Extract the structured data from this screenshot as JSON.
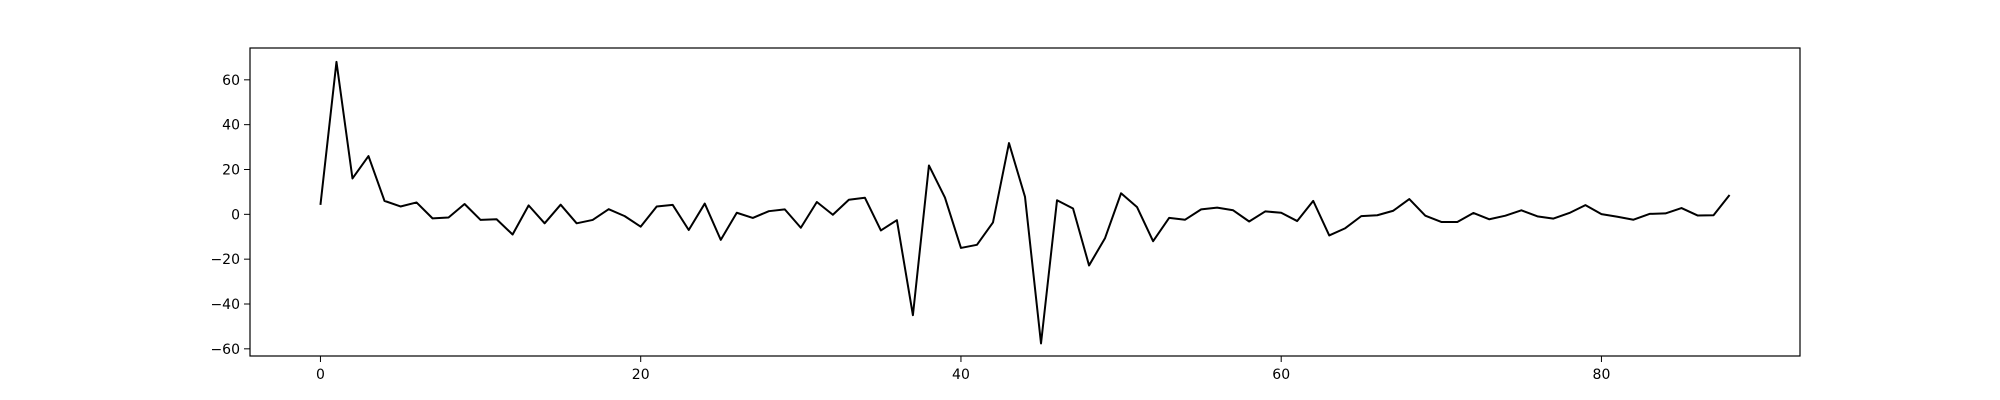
{
  "chart_data": {
    "type": "line",
    "title": "",
    "xlabel": "",
    "ylabel": "",
    "xlim": [
      -4.4,
      92.4
    ],
    "ylim": [
      -63.2,
      74.2
    ],
    "xticks": [
      0,
      20,
      40,
      60,
      80
    ],
    "yticks": [
      -60,
      -40,
      -20,
      0,
      20,
      40,
      60
    ],
    "grid": false,
    "legend": "none",
    "series": [
      {
        "color": "#000000",
        "x": [
          0,
          1,
          2,
          3,
          4,
          5,
          6,
          7,
          8,
          9,
          10,
          11,
          12,
          13,
          14,
          15,
          16,
          17,
          18,
          19,
          20,
          21,
          22,
          23,
          24,
          25,
          26,
          27,
          28,
          29,
          30,
          31,
          32,
          33,
          34,
          35,
          36,
          37,
          38,
          39,
          40,
          41,
          42,
          43,
          44,
          45,
          46,
          47,
          48,
          49,
          50,
          51,
          52,
          53,
          54,
          55,
          56,
          57,
          58,
          59,
          60,
          61,
          62,
          63,
          64,
          65,
          66,
          67,
          68,
          69,
          70,
          71,
          72,
          73,
          74,
          75,
          76,
          77,
          78,
          79,
          80,
          81,
          82,
          83,
          84,
          85,
          86,
          87,
          88
        ],
        "values": [
          4.2,
          68.0,
          16.0,
          26.0,
          6.0,
          3.5,
          5.3,
          -1.8,
          -1.4,
          4.6,
          -2.5,
          -2.2,
          -9.0,
          4.0,
          -4.0,
          4.3,
          -4.0,
          -2.5,
          2.3,
          -0.8,
          -5.5,
          3.5,
          4.2,
          -7.0,
          4.8,
          -11.4,
          0.7,
          -1.6,
          1.4,
          2.2,
          -6.0,
          5.5,
          -0.2,
          6.5,
          7.4,
          -7.2,
          -2.6,
          -45.0,
          21.8,
          7.5,
          -15.0,
          -13.6,
          -3.6,
          31.8,
          7.8,
          -57.6,
          6.3,
          2.6,
          -22.8,
          -10.6,
          9.4,
          3.2,
          -12.0,
          -1.6,
          -2.4,
          2.2,
          3.0,
          1.8,
          -3.2,
          1.3,
          0.7,
          -3.0,
          6.0,
          -9.4,
          -6.2,
          -0.8,
          -0.4,
          1.6,
          6.8,
          -0.6,
          -3.4,
          -3.4,
          0.6,
          -2.2,
          -0.6,
          1.8,
          -0.9,
          -1.9,
          0.6,
          4.1,
          0.1,
          -1.1,
          -2.4,
          0.2,
          0.4,
          2.8,
          -0.5,
          -0.4,
          8.6
        ]
      }
    ]
  }
}
